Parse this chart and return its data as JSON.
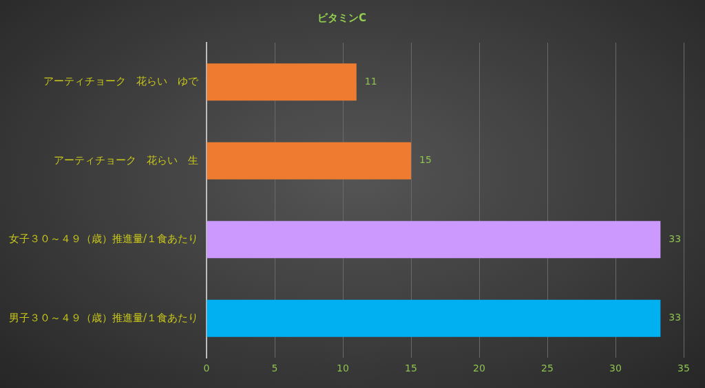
{
  "chart_data": {
    "type": "bar",
    "orientation": "horizontal",
    "title": "ビタミンC",
    "categories": [
      "アーティチョーク　花らい　ゆで",
      "アーティチョーク　花らい　生",
      "女子３０～４９（歳）推進量/１食あたり",
      "男子３０～４９（歳）推進量/１食あたり"
    ],
    "values": [
      11,
      15,
      33.3,
      33.3
    ],
    "value_labels": [
      "11",
      "15",
      "33",
      "33"
    ],
    "colors": [
      "#ef7b30",
      "#ef7b30",
      "#cc99ff",
      "#00b0f0"
    ],
    "xlim": [
      0,
      35
    ],
    "xticks": [
      0,
      5,
      10,
      15,
      20,
      25,
      30,
      35
    ],
    "grid": "x"
  }
}
